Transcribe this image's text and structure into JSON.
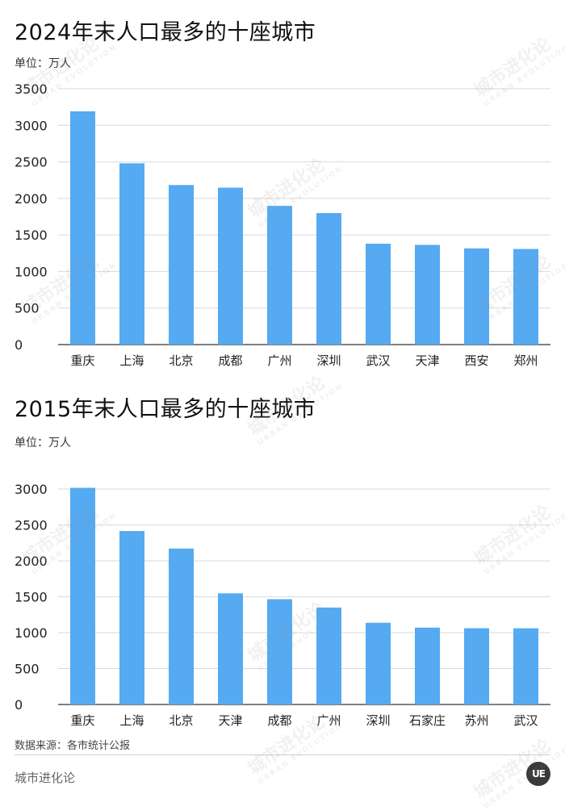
{
  "charts": [
    {
      "title": "2024年末人口最多的十座城市",
      "unit": "单位：万人"
    },
    {
      "title": "2015年末人口最多的十座城市",
      "unit": "单位：万人"
    }
  ],
  "chart_data": [
    {
      "type": "bar",
      "title": "2024年末人口最多的十座城市",
      "ylabel": "单位：万人",
      "categories": [
        "重庆",
        "上海",
        "北京",
        "成都",
        "广州",
        "深圳",
        "武汉",
        "天津",
        "西安",
        "郑州"
      ],
      "values": [
        3191,
        2480,
        2183,
        2147,
        1898,
        1799,
        1380,
        1364,
        1316,
        1308
      ],
      "ylim": [
        0,
        3500
      ],
      "yticks": [
        0,
        500,
        1000,
        1500,
        2000,
        2500,
        3000,
        3500
      ],
      "grid": true,
      "bar_color": "#55aaf2"
    },
    {
      "type": "bar",
      "title": "2015年末人口最多的十座城市",
      "ylabel": "单位：万人",
      "categories": [
        "重庆",
        "上海",
        "北京",
        "天津",
        "成都",
        "广州",
        "深圳",
        "石家庄",
        "苏州",
        "武汉"
      ],
      "values": [
        3017,
        2415,
        2171,
        1547,
        1466,
        1350,
        1138,
        1070,
        1062,
        1061
      ],
      "ylim": [
        0,
        3000
      ],
      "yticks": [
        0,
        500,
        1000,
        1500,
        2000,
        2500,
        3000
      ],
      "grid": true,
      "bar_color": "#55aaf2"
    }
  ],
  "source": "数据来源：各市统计公报",
  "brand": "城市进化论",
  "watermark": {
    "text": "城市进化论",
    "subtext": "URBAN EVOLUTION"
  },
  "logo_text": "UE"
}
